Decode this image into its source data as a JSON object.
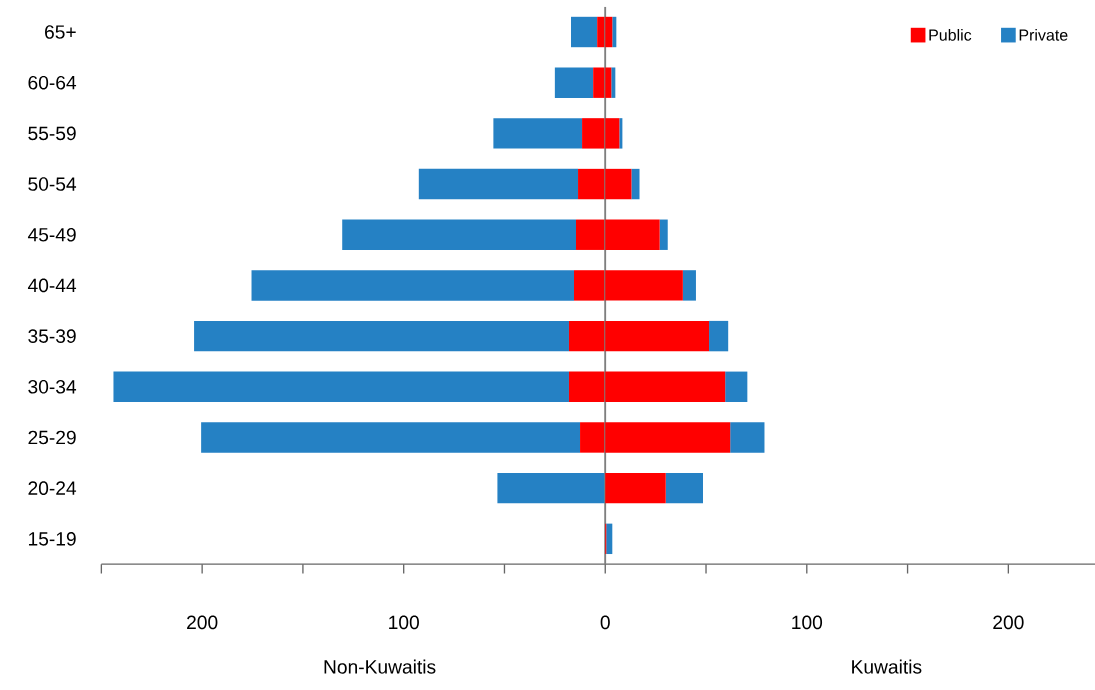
{
  "chart_data": {
    "type": "bar",
    "orientation": "horizontal",
    "stacked": true,
    "categories": [
      "65+",
      "60-64",
      "55-59",
      "50-54",
      "45-49",
      "40-44",
      "35-39",
      "30-34",
      "25-29",
      "20-24",
      "15-19"
    ],
    "series": [
      {
        "name": "Public",
        "color": "#ff0000",
        "values": [
          -4,
          -6,
          -11.5,
          -13.5,
          -14.5,
          -15.5,
          -18,
          -18,
          -12.5,
          null,
          0
        ]
      },
      {
        "name": "Private",
        "color": "#2581c4",
        "values": [
          -13,
          -19,
          -44,
          -79,
          -116,
          -160,
          -186,
          -226,
          -188,
          -53.5,
          0
        ]
      },
      {
        "color": "#ff0000",
        "values": [
          3.5,
          3,
          7,
          13,
          27,
          38.5,
          51.5,
          59.5,
          62,
          30,
          0.5
        ]
      },
      {
        "color": "#2581c4",
        "values": [
          2,
          2,
          1.5,
          4,
          4,
          6.5,
          9.5,
          11,
          17,
          18.5,
          3
        ]
      }
    ],
    "xlim": [
      -250,
      243
    ],
    "xticks": [
      {
        "value": -250,
        "label": null
      },
      {
        "value": -200,
        "label": "200"
      },
      {
        "value": -150,
        "label": null
      },
      {
        "value": -100,
        "label": "100"
      },
      {
        "value": -50,
        "label": null
      },
      0,
      {
        "value": 50,
        "label": null
      },
      100,
      {
        "value": 150,
        "label": null
      },
      200
    ],
    "annotations": [
      "Non-Kuwaitis",
      "Kuwaitis"
    ],
    "ref_lines": [
      {
        "axis": "x",
        "value": 0,
        "color": "#7f7f7f"
      }
    ],
    "legend": "top right",
    "grid": false
  }
}
